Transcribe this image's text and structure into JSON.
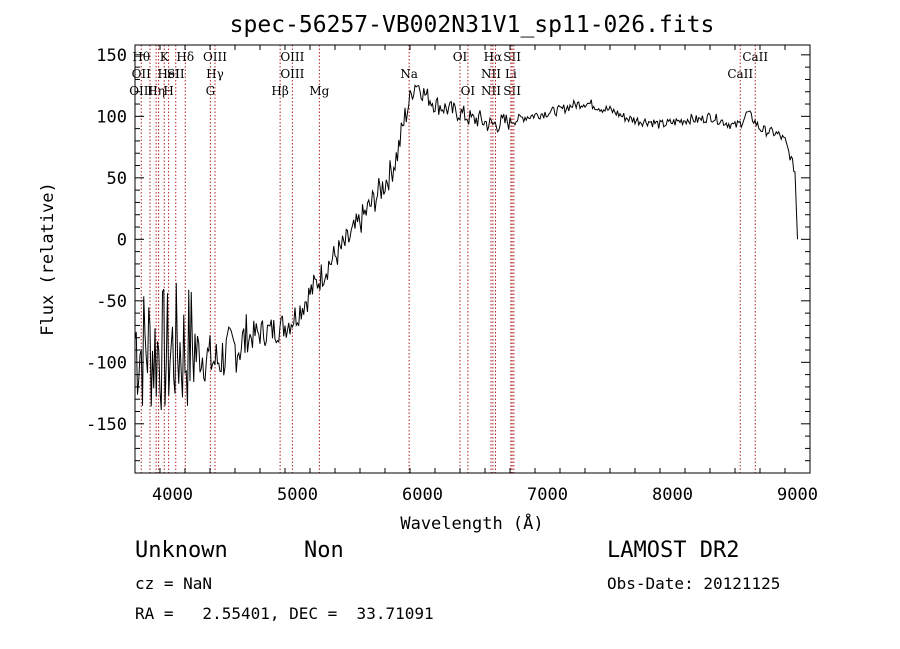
{
  "chart_data": {
    "type": "line",
    "title": "spec-56257-VB002N31V1_sp11-026.fits",
    "xlabel": "Wavelength (Å)",
    "ylabel": "Flux (relative)",
    "xlim": [
      3700,
      9100
    ],
    "ylim": [
      -190,
      158
    ],
    "xticks": [
      4000,
      5000,
      6000,
      7000,
      8000,
      9000
    ],
    "yticks": [
      -150,
      -100,
      -50,
      0,
      50,
      100,
      150
    ],
    "grid": false,
    "series": [
      {
        "x": [
          3700,
          3750,
          3800,
          3850,
          3900,
          3950,
          4000,
          4050,
          4100,
          4150,
          4200,
          4250,
          4300,
          4350,
          4400,
          4450,
          4500,
          4550,
          4600,
          4650,
          4700,
          4750,
          4800,
          4850,
          4900,
          4950,
          5000,
          5050,
          5100,
          5150,
          5200,
          5250,
          5300,
          5350,
          5400,
          5450,
          5500,
          5550,
          5600,
          5650,
          5700,
          5750,
          5800,
          5850,
          5900,
          5950,
          6000,
          6050,
          6100,
          6150,
          6200,
          6250,
          6300,
          6350,
          6400,
          6450,
          6500,
          6550,
          6600,
          6650,
          6700,
          6750,
          6800,
          6850,
          6900,
          6950,
          7000,
          7050,
          7100,
          7150,
          7200,
          7250,
          7300,
          7350,
          7400,
          7450,
          7500,
          7550,
          7600,
          7650,
          7700,
          7750,
          7800,
          7850,
          7900,
          7950,
          8000,
          8050,
          8100,
          8150,
          8200,
          8250,
          8300,
          8350,
          8400,
          8450,
          8500,
          8550,
          8600,
          8650,
          8700,
          8750,
          8800,
          8850,
          8900,
          8950,
          8980,
          9000
        ],
        "y": [
          -80,
          -90,
          -85,
          -92,
          -88,
          -95,
          -90,
          -88,
          -92,
          -85,
          -90,
          -95,
          -98,
          -100,
          -95,
          -92,
          -88,
          -85,
          -80,
          -78,
          -76,
          -75,
          -74,
          -72,
          -70,
          -66,
          -60,
          -52,
          -44,
          -36,
          -28,
          -20,
          -14,
          -8,
          -2,
          6,
          14,
          22,
          30,
          38,
          46,
          55,
          70,
          95,
          115,
          128,
          120,
          115,
          110,
          108,
          106,
          104,
          103,
          100,
          97,
          98,
          95,
          93,
          94,
          95,
          96,
          97,
          99,
          100,
          101,
          102,
          103,
          104,
          105,
          107,
          109,
          110,
          111,
          110,
          108,
          106,
          105,
          103,
          100,
          98,
          97,
          96,
          96,
          95,
          93,
          94,
          95,
          96,
          97,
          98,
          97,
          98,
          100,
          98,
          96,
          94,
          92,
          95,
          103,
          97,
          90,
          88,
          87,
          85,
          80,
          65,
          55,
          0
        ]
      }
    ],
    "line_markers": [
      {
        "x": 3750,
        "labels": [
          "Hθ",
          "OII",
          "OIII"
        ]
      },
      {
        "x": 3820,
        "labels": [
          "",
          "",
          ""
        ]
      },
      {
        "x": 3869,
        "labels": [
          "",
          "",
          "Hη"
        ]
      },
      {
        "x": 3889,
        "labels": [
          "",
          "",
          ""
        ]
      },
      {
        "x": 3934,
        "labels": [
          "K",
          "",
          ""
        ]
      },
      {
        "x": 3969,
        "labels": [
          "",
          "HeI",
          "H"
        ]
      },
      {
        "x": 4026,
        "labels": [
          "",
          "SII",
          ""
        ]
      },
      {
        "x": 4102,
        "labels": [
          "Hδ",
          "",
          ""
        ]
      },
      {
        "x": 4303,
        "labels": [
          "",
          "",
          "G"
        ]
      },
      {
        "x": 4340,
        "labels": [
          "OIII",
          "Hγ",
          ""
        ]
      },
      {
        "x": 4861,
        "labels": [
          "",
          "",
          "Hβ"
        ]
      },
      {
        "x": 4959,
        "labels": [
          "OIII",
          "OIII",
          ""
        ]
      },
      {
        "x": 5175,
        "labels": [
          "",
          "",
          "Mg"
        ]
      },
      {
        "x": 5893,
        "labels": [
          "",
          "Na",
          ""
        ]
      },
      {
        "x": 6300,
        "labels": [
          "OI",
          "",
          ""
        ]
      },
      {
        "x": 6363,
        "labels": [
          "",
          "",
          "OI"
        ]
      },
      {
        "x": 6548,
        "labels": [
          "",
          "NII",
          "NII"
        ]
      },
      {
        "x": 6563,
        "labels": [
          "Hα",
          "",
          ""
        ]
      },
      {
        "x": 6584,
        "labels": [
          "",
          "",
          ""
        ]
      },
      {
        "x": 6707,
        "labels": [
          "",
          "Li",
          ""
        ]
      },
      {
        "x": 6717,
        "labels": [
          "SII",
          "",
          "SII"
        ]
      },
      {
        "x": 6731,
        "labels": [
          "",
          "",
          ""
        ]
      },
      {
        "x": 8542,
        "labels": [
          "",
          "CaII",
          ""
        ]
      },
      {
        "x": 8662,
        "labels": [
          "CaII",
          "",
          ""
        ]
      }
    ]
  },
  "info": {
    "class": "Unknown",
    "subclass": "Non",
    "survey": "LAMOST DR2",
    "cz": "cz = NaN",
    "obs_date": "Obs-Date: 20121125",
    "radec": "RA =   2.55401, DEC =  33.71091"
  },
  "colors": {
    "spectrum": "#000000",
    "marker": "#b22222",
    "axes": "#000000"
  }
}
